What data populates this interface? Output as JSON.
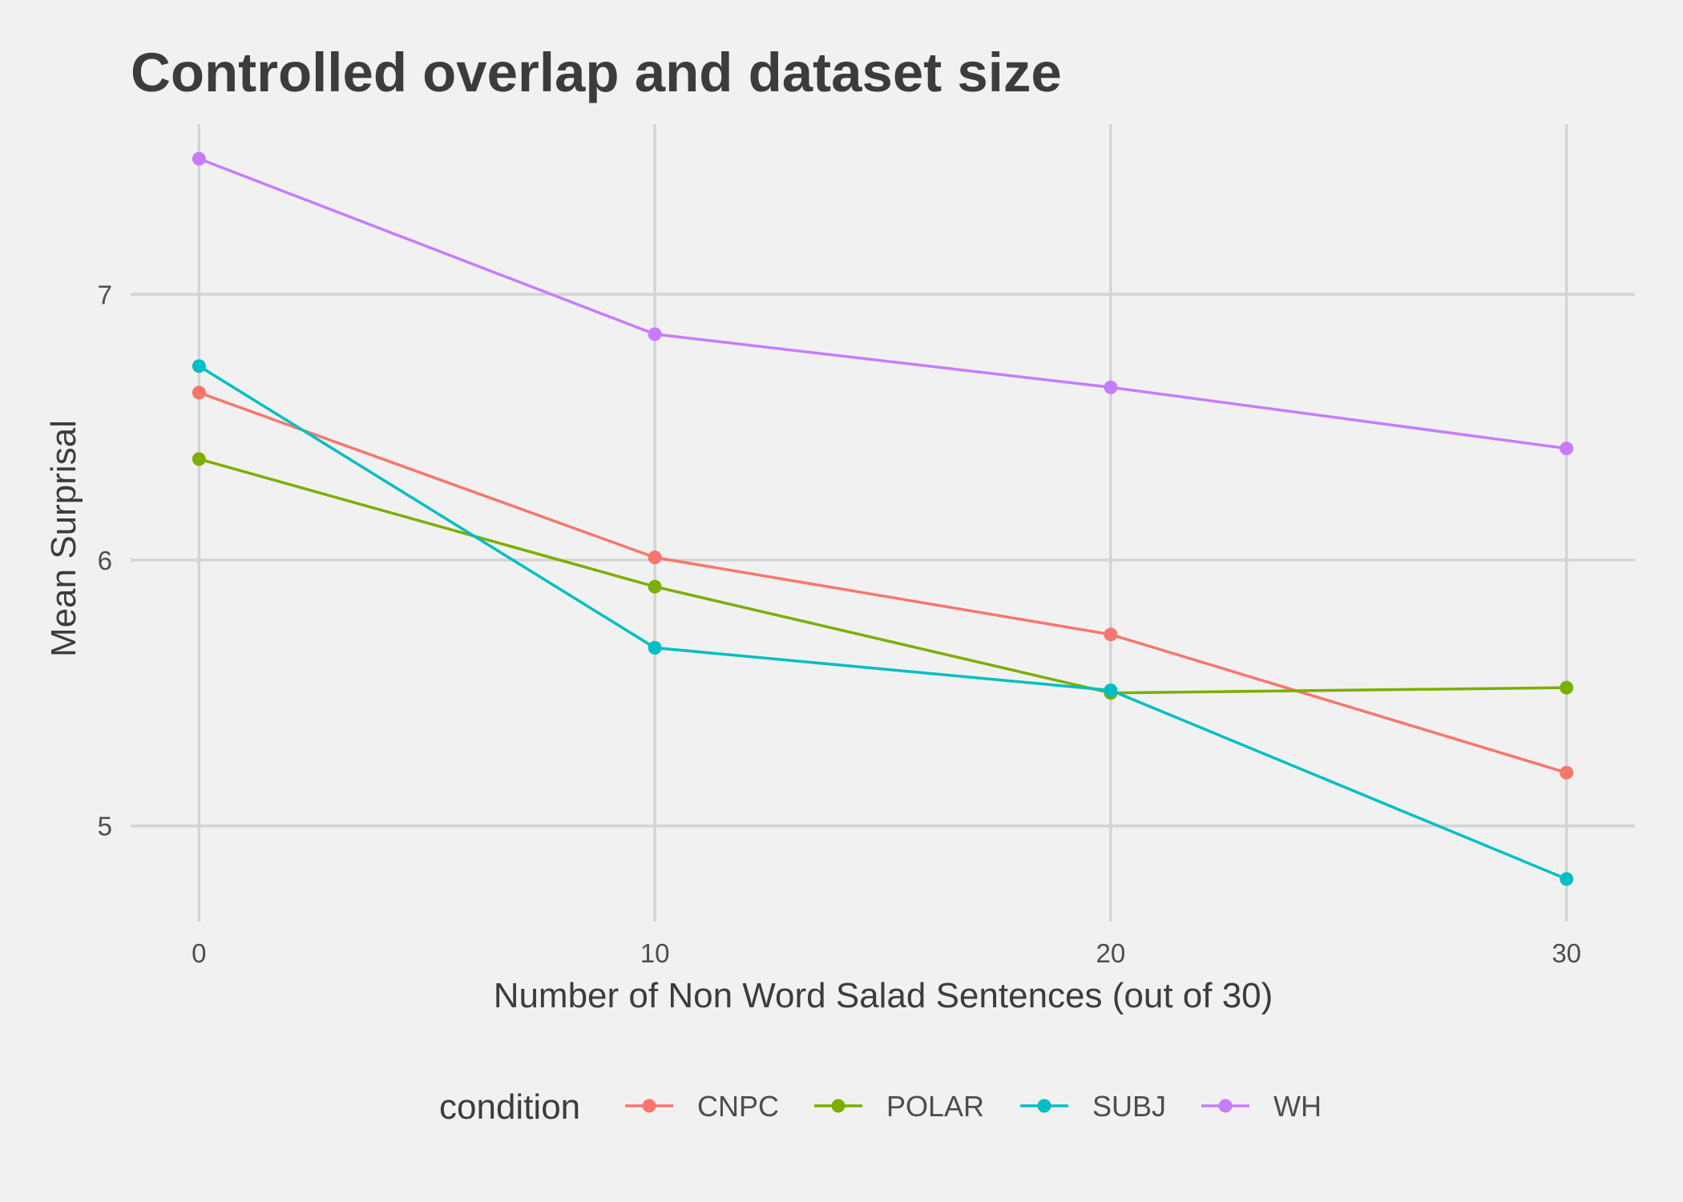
{
  "chart_data": {
    "type": "line",
    "title": "Controlled overlap and dataset size",
    "xlabel": "Number of Non Word Salad Sentences (out of 30)",
    "ylabel": "Mean Surprisal",
    "x": [
      0,
      10,
      20,
      30
    ],
    "x_ticks": [
      "0",
      "10",
      "20",
      "30"
    ],
    "y_ticks": [
      "5",
      "6",
      "7"
    ],
    "xlim": [
      -1.5,
      31.5
    ],
    "ylim": [
      4.64,
      7.64
    ],
    "grid": true,
    "legend": {
      "title": "condition",
      "placement": "bottom"
    },
    "series": [
      {
        "name": "CNPC",
        "color": "#f8766d",
        "values": [
          6.63,
          6.01,
          5.72,
          5.2
        ]
      },
      {
        "name": "POLAR",
        "color": "#7cae00",
        "values": [
          6.38,
          5.9,
          5.5,
          5.52
        ]
      },
      {
        "name": "SUBJ",
        "color": "#00bfc4",
        "values": [
          6.73,
          5.67,
          5.51,
          4.8
        ]
      },
      {
        "name": "WH",
        "color": "#c77cff",
        "values": [
          7.51,
          6.85,
          6.65,
          6.42
        ]
      }
    ]
  }
}
